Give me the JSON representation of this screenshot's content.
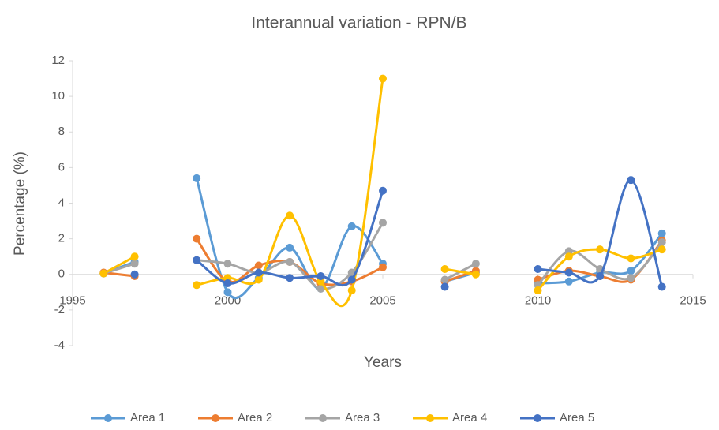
{
  "chart_data": {
    "type": "line",
    "title": "Interannual variation  - RPN/B",
    "x_label": "Years",
    "y_label": "Percentage (%)",
    "x": [
      1996,
      1997,
      1998,
      1999,
      2000,
      2001,
      2002,
      2003,
      2004,
      2005,
      2006,
      2007,
      2008,
      2009,
      2010,
      2011,
      2012,
      2013,
      2014
    ],
    "xlim": [
      1995,
      2015
    ],
    "xticks": [
      1995,
      2000,
      2005,
      2010,
      2015
    ],
    "ylim": [
      -4,
      12
    ],
    "yticks": [
      -4,
      -2,
      0,
      2,
      4,
      6,
      8,
      10,
      12
    ],
    "smooth": true,
    "legend": "bottom",
    "series": [
      {
        "name": "Area 1",
        "color": "#5b9bd5",
        "values": [
          0.05,
          0.7,
          null,
          5.4,
          -1.0,
          -0.2,
          1.5,
          -0.8,
          2.7,
          0.6,
          null,
          -0.4,
          0.1,
          null,
          -0.5,
          -0.4,
          0.1,
          0.2,
          2.3
        ]
      },
      {
        "name": "Area 2",
        "color": "#ed7d31",
        "values": [
          0.1,
          -0.1,
          null,
          2.0,
          -0.4,
          0.5,
          0.7,
          -0.5,
          -0.4,
          0.4,
          null,
          -0.4,
          0.2,
          null,
          -0.3,
          0.2,
          -0.1,
          -0.3,
          1.9
        ]
      },
      {
        "name": "Area 3",
        "color": "#a5a5a5",
        "values": [
          0.05,
          0.6,
          null,
          0.8,
          0.6,
          0.1,
          0.7,
          -0.8,
          0.1,
          2.9,
          null,
          -0.3,
          0.6,
          null,
          -0.6,
          1.3,
          0.3,
          -0.2,
          1.8
        ]
      },
      {
        "name": "Area 4",
        "color": "#ffc000",
        "values": [
          0.05,
          1.0,
          null,
          -0.6,
          -0.2,
          -0.3,
          3.3,
          -0.4,
          -0.9,
          11.0,
          null,
          0.3,
          0.0,
          null,
          -0.9,
          1.0,
          1.4,
          0.9,
          1.4
        ]
      },
      {
        "name": "Area 5",
        "color": "#4472c4",
        "values": [
          null,
          0.0,
          null,
          0.8,
          -0.5,
          0.1,
          -0.2,
          -0.1,
          -0.3,
          4.7,
          null,
          -0.7,
          null,
          null,
          0.3,
          0.1,
          -0.1,
          5.3,
          -0.7
        ]
      }
    ]
  }
}
